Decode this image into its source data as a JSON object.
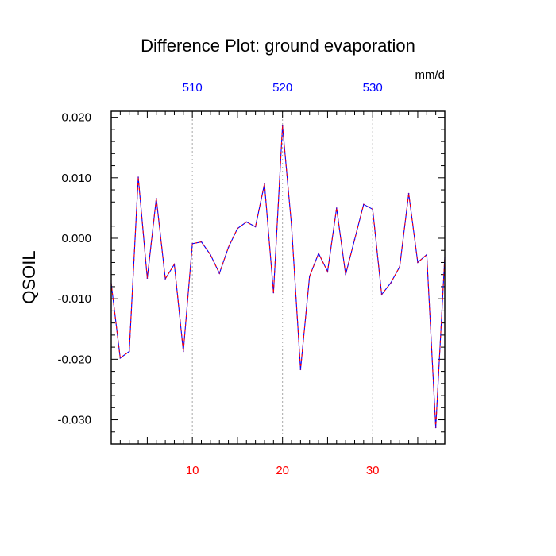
{
  "chart_data": {
    "type": "line",
    "title": "Difference Plot: ground evaporation",
    "units": "mm/d",
    "ylabel": "QSOIL",
    "xlabel": "",
    "xlim": [
      1,
      38
    ],
    "ylim": [
      -0.034,
      0.021
    ],
    "grid": "vertical dotted lines at bottom-axis ticks",
    "bottom_axis_color": "#ff0000",
    "top_axis_color": "#0000ff",
    "line_colors": [
      "#0000ff",
      "#ff0000"
    ],
    "bottom_ticks": [
      {
        "value": 10,
        "label": "10"
      },
      {
        "value": 20,
        "label": "20"
      },
      {
        "value": 30,
        "label": "30"
      }
    ],
    "top_ticks": [
      {
        "value": 10,
        "label": "510"
      },
      {
        "value": 20,
        "label": "520"
      },
      {
        "value": 30,
        "label": "530"
      }
    ],
    "y_ticks": [
      {
        "value": 0.02,
        "label": "0.020"
      },
      {
        "value": 0.01,
        "label": "0.010"
      },
      {
        "value": 0.0,
        "label": "0.000"
      },
      {
        "value": -0.01,
        "label": "-0.010"
      },
      {
        "value": -0.02,
        "label": "-0.020"
      },
      {
        "value": -0.03,
        "label": "-0.030"
      }
    ],
    "x": [
      1,
      2,
      3,
      4,
      5,
      6,
      7,
      8,
      9,
      10,
      11,
      12,
      13,
      14,
      15,
      16,
      17,
      18,
      19,
      20,
      21,
      22,
      23,
      24,
      25,
      26,
      27,
      28,
      29,
      30,
      31,
      32,
      33,
      34,
      35,
      36,
      37,
      38
    ],
    "values": [
      -0.0075,
      -0.0198,
      -0.0187,
      0.0101,
      -0.0066,
      0.0066,
      -0.0067,
      -0.0043,
      -0.0187,
      -0.0009,
      -0.0006,
      -0.0027,
      -0.0058,
      -0.0015,
      0.0016,
      0.0027,
      0.0019,
      0.009,
      -0.009,
      0.0186,
      0.0021,
      -0.0217,
      -0.0063,
      -0.0025,
      -0.0055,
      0.005,
      -0.006,
      -0.0002,
      0.0056,
      0.0048,
      -0.0093,
      -0.0074,
      -0.0047,
      0.0074,
      -0.004,
      -0.0027,
      -0.0313,
      -0.0031
    ]
  }
}
